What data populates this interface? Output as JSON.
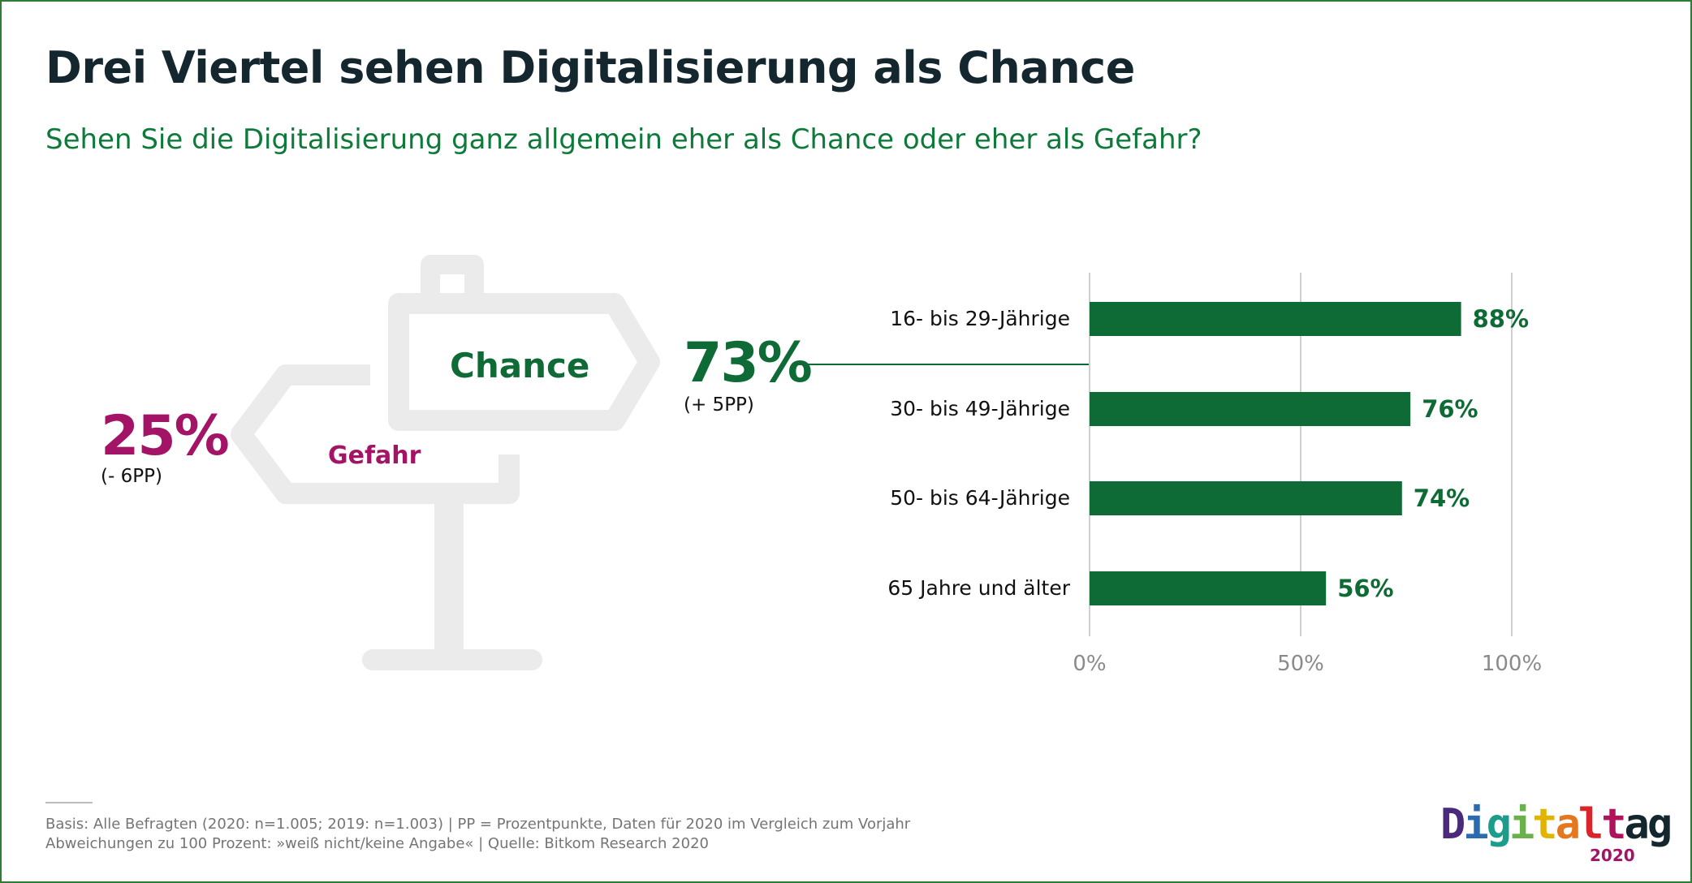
{
  "title": "Drei Viertel sehen Digitalisierung als Chance",
  "subtitle": "Sehen Sie die Digitalisierung ganz allgemein eher als Chance oder eher als Gefahr?",
  "summary": {
    "chance": {
      "label": "Chance",
      "percent": "73%",
      "delta": "(+ 5PP)",
      "color": "#0e6b35"
    },
    "gefahr": {
      "label": "Gefahr",
      "percent": "25%",
      "delta": "(- 6PP)",
      "color": "#a31466"
    }
  },
  "chart_data": {
    "type": "bar",
    "orientation": "horizontal",
    "categories": [
      "16- bis 29-Jährige",
      "30- bis 49-Jährige",
      "50- bis 64-Jährige",
      "65 Jahre und älter"
    ],
    "values": [
      88,
      76,
      74,
      56
    ],
    "value_labels": [
      "88%",
      "76%",
      "74%",
      "56%"
    ],
    "xlim": [
      0,
      100
    ],
    "x_ticks": [
      {
        "value": 0,
        "label": "0%"
      },
      {
        "value": 50,
        "label": "50%"
      },
      {
        "value": 100,
        "label": "100%"
      }
    ],
    "grid": true,
    "bar_color": "#0e6b35",
    "label_color": "#0e6b35",
    "grid_color": "#d0d0d0"
  },
  "footer": {
    "line1": "Basis: Alle Befragten (2020: n=1.005; 2019: n=1.003) | PP = Prozentpunkte, Daten für 2020 im Vergleich zum Vorjahr",
    "line2": "Abweichungen zu 100 Prozent: »weiß nicht/keine Angabe« | Quelle: Bitkom Research 2020"
  },
  "logo": {
    "letters": [
      {
        "char": "D",
        "color": "#4a2a7a"
      },
      {
        "char": "i",
        "color": "#2b6cb0"
      },
      {
        "char": "g",
        "color": "#1c9c8a"
      },
      {
        "char": "i",
        "color": "#6ab04c"
      },
      {
        "char": "t",
        "color": "#e0b400"
      },
      {
        "char": "a",
        "color": "#e5771e"
      },
      {
        "char": "l",
        "color": "#d8262a"
      },
      {
        "char": "t",
        "color": "#b0135c"
      },
      {
        "char": "a",
        "color": "#14262e"
      },
      {
        "char": "g",
        "color": "#14262e"
      }
    ],
    "year": "2020"
  }
}
